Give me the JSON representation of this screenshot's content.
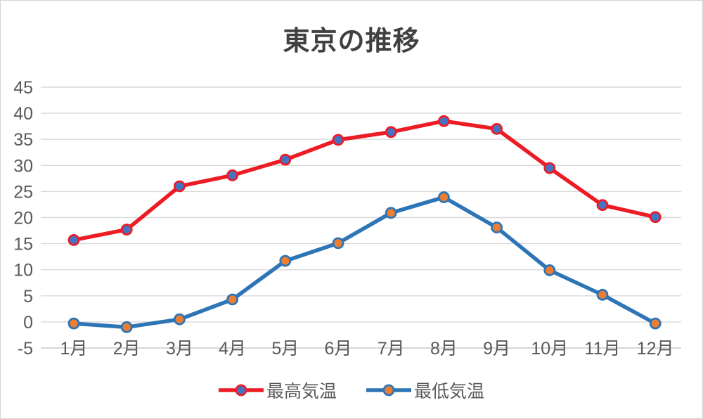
{
  "chart_data": {
    "type": "line",
    "title": "東京の推移",
    "categories": [
      "1月",
      "2月",
      "3月",
      "4月",
      "5月",
      "6月",
      "7月",
      "8月",
      "9月",
      "10月",
      "11月",
      "12月"
    ],
    "series": [
      {
        "name": "最高気温",
        "values": [
          15.7,
          17.7,
          26.0,
          28.1,
          31.1,
          34.9,
          36.4,
          38.5,
          37.0,
          29.5,
          22.4,
          20.1
        ],
        "line_color": "#ED1C24",
        "marker_fill": "#4472C4"
      },
      {
        "name": "最低気温",
        "values": [
          -0.3,
          -1.0,
          0.5,
          4.3,
          11.7,
          15.1,
          20.9,
          23.9,
          18.1,
          9.9,
          5.2,
          -0.3
        ],
        "line_color": "#2E75B6",
        "marker_fill": "#ED7D31"
      }
    ],
    "y_ticks": [
      45,
      40,
      35,
      30,
      25,
      20,
      15,
      10,
      5,
      0,
      -5
    ],
    "ylim": [
      -5,
      45
    ],
    "xlabel": "",
    "ylabel": "",
    "grid": "horizontal",
    "gridline_color": "#D9D9D9",
    "axis_label_color": "#595959",
    "title_color": "#404040",
    "legend_position": "bottom"
  }
}
